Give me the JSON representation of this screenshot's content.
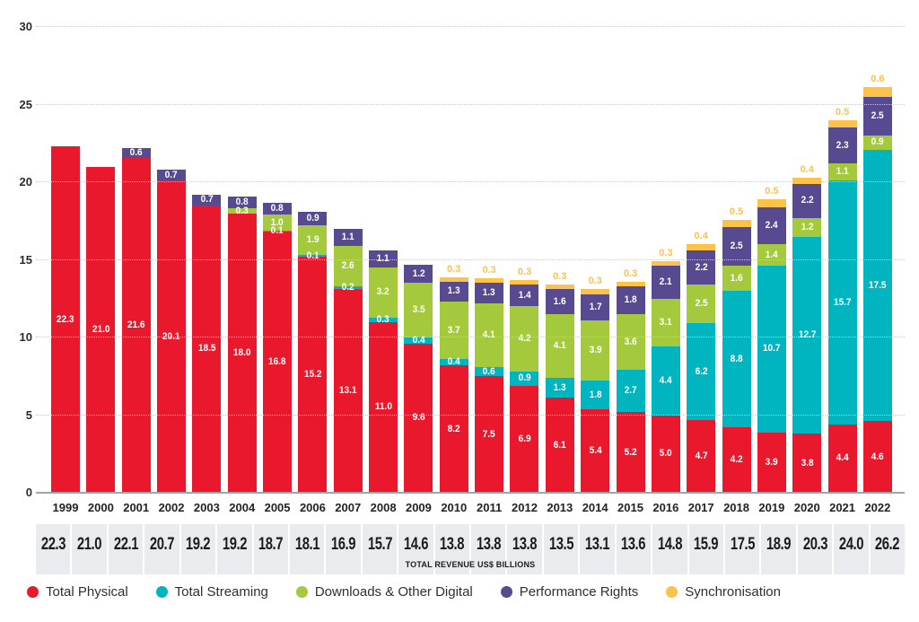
{
  "chart_data": {
    "type": "bar",
    "stacked": true,
    "title": "",
    "grid": "horizontal dotted",
    "legend_position": "bottom",
    "ylim": [
      0,
      30
    ],
    "yticks": [
      0,
      5,
      10,
      15,
      20,
      25,
      30
    ],
    "categories": [
      "1999",
      "2000",
      "2001",
      "2002",
      "2003",
      "2004",
      "2005",
      "2006",
      "2007",
      "2008",
      "2009",
      "2010",
      "2011",
      "2012",
      "2013",
      "2014",
      "2015",
      "2016",
      "2017",
      "2018",
      "2019",
      "2020",
      "2021",
      "2022"
    ],
    "series": [
      {
        "name": "Total Physical",
        "color": "#e9182c",
        "values": [
          22.3,
          21.0,
          21.6,
          20.1,
          18.5,
          18.0,
          16.8,
          15.2,
          13.1,
          11.0,
          9.6,
          8.2,
          7.5,
          6.9,
          6.1,
          5.4,
          5.2,
          5.0,
          4.7,
          4.2,
          3.9,
          3.8,
          4.4,
          4.6
        ]
      },
      {
        "name": "Total Streaming",
        "color": "#00b5c0",
        "values": [
          0,
          0,
          0,
          0,
          0,
          0,
          0.1,
          0.1,
          0.2,
          0.3,
          0.4,
          0.4,
          0.6,
          0.9,
          1.3,
          1.8,
          2.7,
          4.4,
          6.2,
          8.8,
          10.7,
          12.7,
          15.7,
          17.5
        ]
      },
      {
        "name": "Downloads & Other Digital",
        "color": "#a5c93c",
        "values": [
          0,
          0,
          0,
          0,
          0,
          0.3,
          1.0,
          1.9,
          2.6,
          3.2,
          3.5,
          3.7,
          4.1,
          4.2,
          4.1,
          3.9,
          3.6,
          3.1,
          2.5,
          1.6,
          1.4,
          1.2,
          1.1,
          0.9
        ]
      },
      {
        "name": "Performance Rights",
        "color": "#584a90",
        "values": [
          0,
          0,
          0.6,
          0.7,
          0.7,
          0.8,
          0.8,
          0.9,
          1.1,
          1.1,
          1.2,
          1.3,
          1.3,
          1.4,
          1.6,
          1.7,
          1.8,
          2.1,
          2.2,
          2.5,
          2.4,
          2.2,
          2.3,
          2.5
        ]
      },
      {
        "name": "Synchronisation",
        "color": "#fcc24a",
        "values": [
          0,
          0,
          0,
          0,
          0,
          0,
          0,
          0,
          0,
          0,
          0,
          0.3,
          0.3,
          0.3,
          0.3,
          0.3,
          0.3,
          0.3,
          0.4,
          0.5,
          0.5,
          0.4,
          0.5,
          0.6
        ]
      }
    ],
    "totals": [
      22.3,
      21.0,
      22.1,
      20.7,
      19.2,
      19.2,
      18.7,
      18.1,
      16.9,
      15.7,
      14.6,
      13.8,
      13.8,
      13.8,
      13.5,
      13.1,
      13.6,
      14.8,
      15.9,
      17.5,
      18.9,
      20.3,
      24.0,
      26.2
    ],
    "totals_label": "TOTAL REVENUE US$ BILLIONS"
  },
  "colors": {
    "band_background": "#e9ebee",
    "gridline": "#c9c9cb",
    "axis_line": "#a3a3a7",
    "axis_text": "#2b2b2b",
    "bar_label_text": "#ffffff",
    "sync_label_text": "#fcc24a"
  }
}
